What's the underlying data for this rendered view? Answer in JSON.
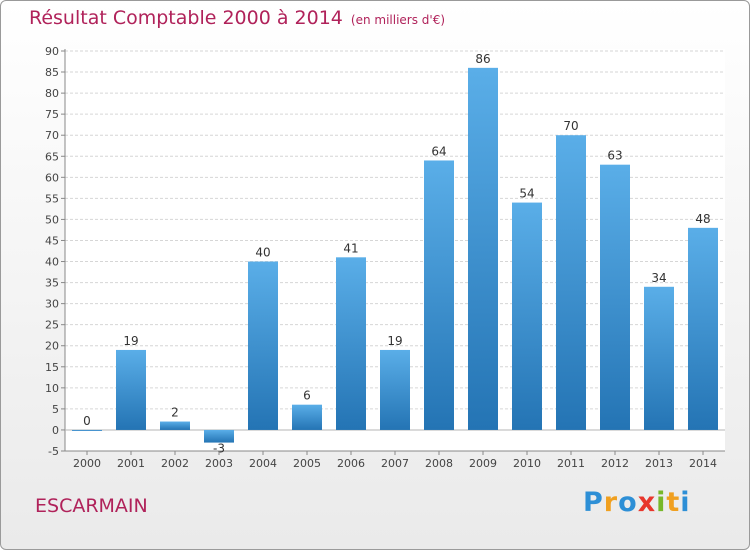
{
  "title": "Résultat Comptable 2000 à 2014",
  "unit": "(en milliers d'€)",
  "place": "ESCARMAIN",
  "logo": {
    "text": "Proxiti",
    "letters": [
      {
        "char": "P",
        "color": "#2d8fd6"
      },
      {
        "char": "r",
        "color": "#f0a020"
      },
      {
        "char": "o",
        "color": "#2d8fd6"
      },
      {
        "char": "x",
        "color": "#e8362c"
      },
      {
        "char": "i",
        "color": "#77b82a"
      },
      {
        "char": "t",
        "color": "#f0a020"
      },
      {
        "char": "i",
        "color": "#2d8fd6"
      }
    ]
  },
  "colors": {
    "accent": "#b0225a",
    "bar_top": "#5aaee8",
    "bar_bottom": "#2474b4",
    "grid": "#d6d6d6",
    "axis_text": "#444444"
  },
  "chart_data": {
    "type": "bar",
    "categories": [
      "2000",
      "2001",
      "2002",
      "2003",
      "2004",
      "2005",
      "2006",
      "2007",
      "2008",
      "2009",
      "2010",
      "2011",
      "2012",
      "2013",
      "2014"
    ],
    "values": [
      0,
      19,
      2,
      -3,
      40,
      6,
      41,
      19,
      64,
      86,
      54,
      70,
      63,
      34,
      48
    ],
    "data_labels": [
      "0",
      "19",
      "2",
      "-3",
      "40",
      "6",
      "41",
      "19",
      "64",
      "86",
      "54",
      "70",
      "63",
      "34",
      "48"
    ],
    "yticks": [
      -5,
      0,
      5,
      10,
      15,
      20,
      25,
      30,
      35,
      40,
      45,
      50,
      55,
      60,
      65,
      70,
      75,
      80,
      85,
      90
    ],
    "ylim": [
      -5,
      90
    ],
    "title": "Résultat Comptable 2000 à 2014",
    "xlabel": "",
    "ylabel": "",
    "grid": true
  }
}
